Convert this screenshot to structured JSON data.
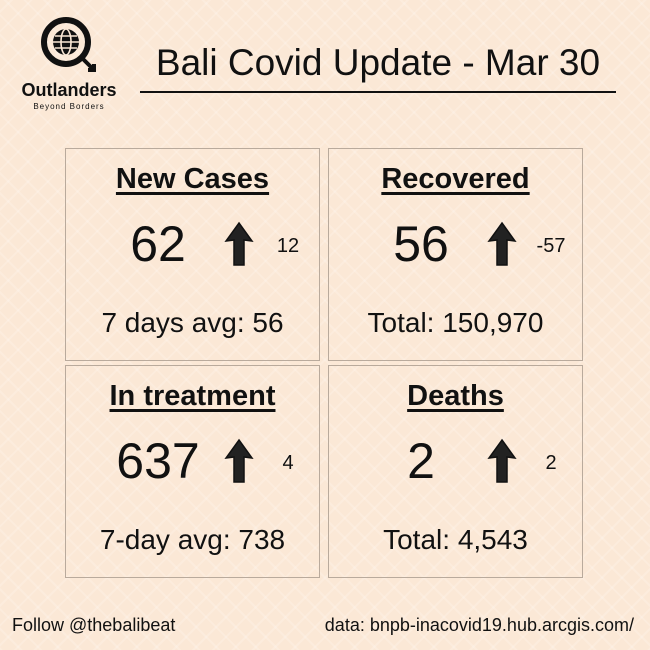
{
  "logo": {
    "name": "Outlanders",
    "tagline": "Beyond Borders"
  },
  "title": "Bali Covid Update - Mar 30",
  "cards": [
    {
      "heading": "New Cases",
      "value": "62",
      "change": "12",
      "footer": "7 days avg: 56"
    },
    {
      "heading": "Recovered",
      "value": "56",
      "change": "-57",
      "footer": "Total: 150,970"
    },
    {
      "heading": "In treatment",
      "value": "637",
      "change": "4",
      "footer": "7-day avg: 738"
    },
    {
      "heading": "Deaths",
      "value": "2",
      "change": "2",
      "footer": "Total: 4,543"
    }
  ],
  "footer": {
    "follow": "Follow @thebalibeat",
    "source": "data: bnpb-inacovid19.hub.arcgis.com/"
  }
}
